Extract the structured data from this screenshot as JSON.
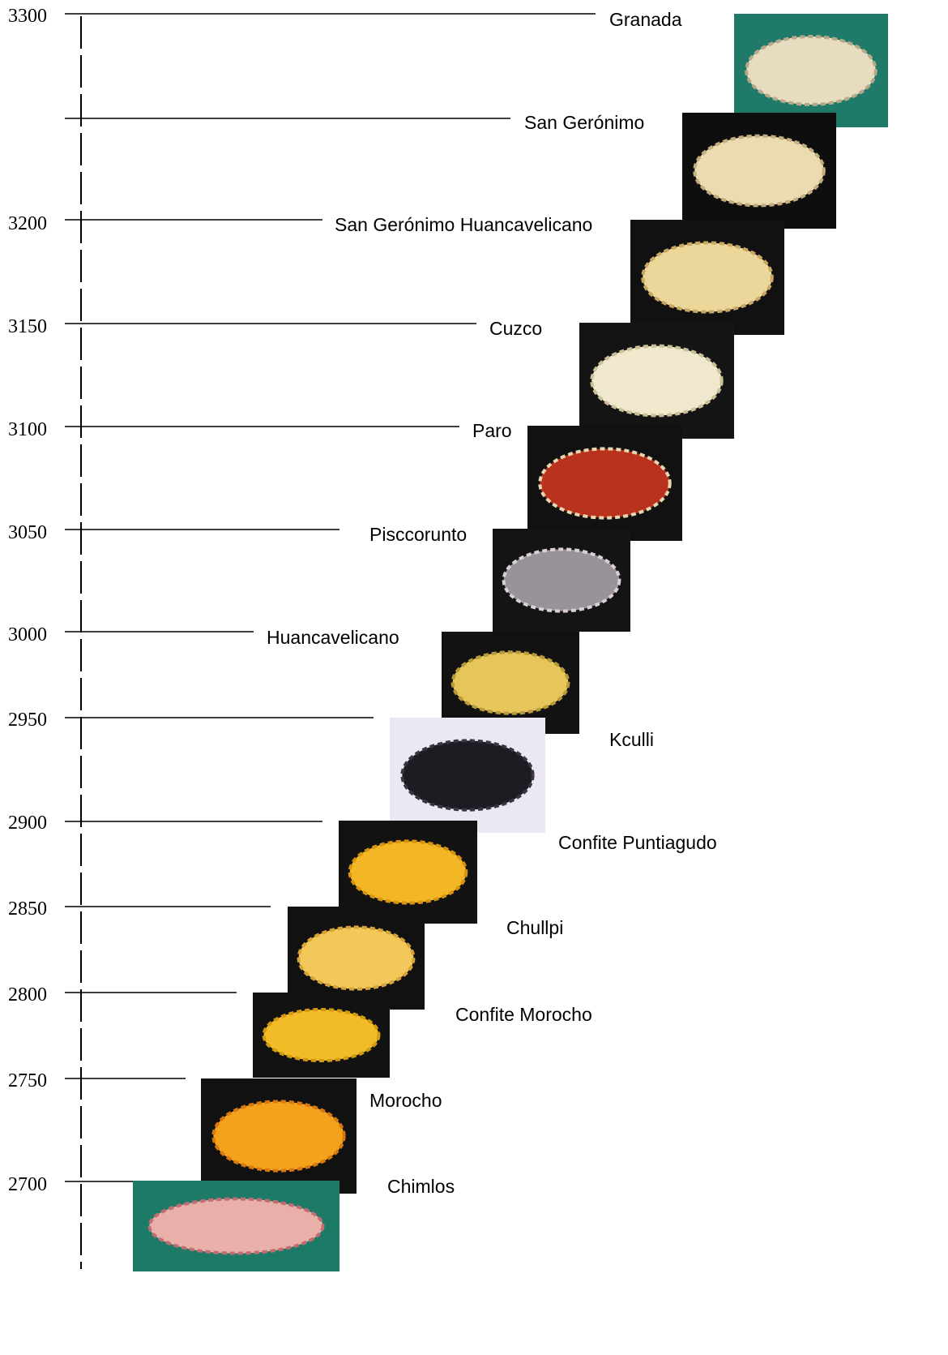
{
  "axis": {
    "labels": [
      "3300",
      "3200",
      "3150",
      "3100",
      "3050",
      "3000",
      "2950",
      "2900",
      "2850",
      "2800",
      "2750",
      "2700"
    ]
  },
  "varieties": [
    {
      "name": "Granada"
    },
    {
      "name": "San Gerónimo"
    },
    {
      "name": "San Gerónimo Huancavelicano"
    },
    {
      "name": "Cuzco"
    },
    {
      "name": "Paro"
    },
    {
      "name": "Pisccorunto"
    },
    {
      "name": "Huancavelicano"
    },
    {
      "name": "Kculli"
    },
    {
      "name": "Confite Puntiagudo"
    },
    {
      "name": "Chullpi"
    },
    {
      "name": "Confite Morocho"
    },
    {
      "name": "Morocho"
    },
    {
      "name": "Chimlos"
    }
  ]
}
